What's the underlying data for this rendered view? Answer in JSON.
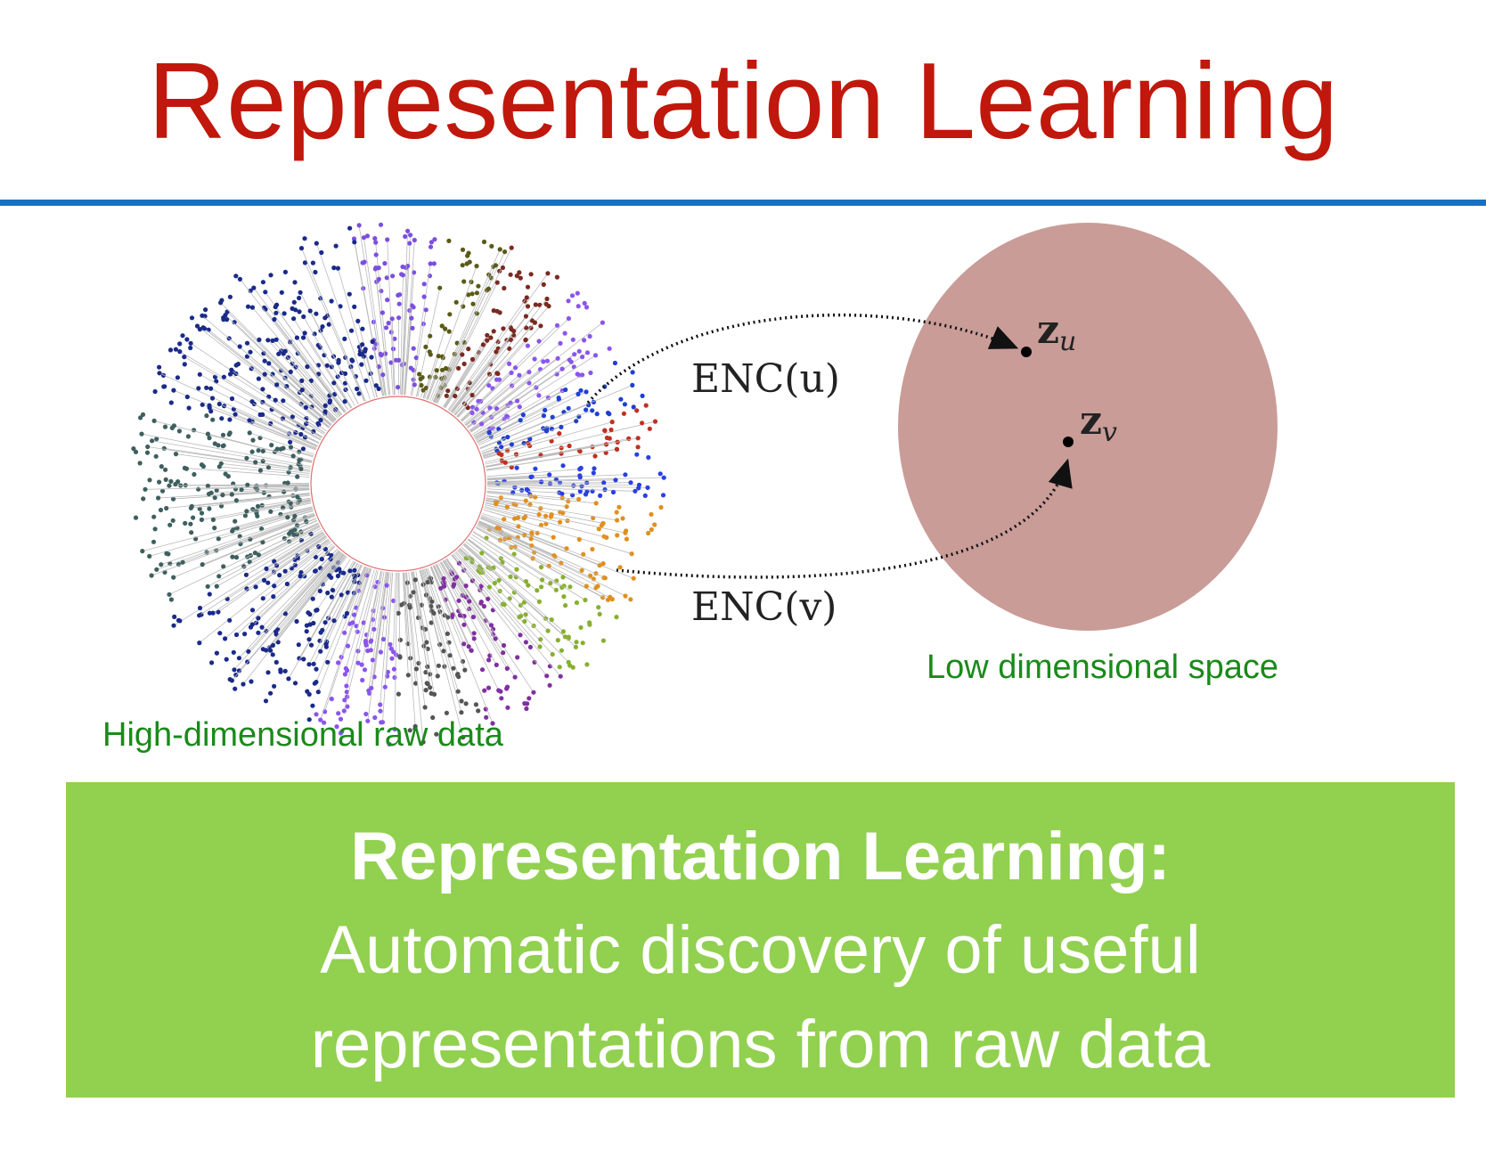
{
  "title": "Representation Learning",
  "diagram": {
    "left_label": "High-dimensional raw data",
    "right_label": "Low dimensional space",
    "encoder_u": "ENC(u)",
    "encoder_v": "ENC(v)",
    "embedding_u": "z_u",
    "embedding_v": "z_v",
    "colors": {
      "title": "#c0180c",
      "rule": "#1a6fbf",
      "space": "#c99c98",
      "labels": "#1a8a1a",
      "box": "#92d050"
    }
  },
  "definition": {
    "heading": "Representation Learning:",
    "line1": "Automatic discovery of useful",
    "line2": "representations from raw data"
  }
}
